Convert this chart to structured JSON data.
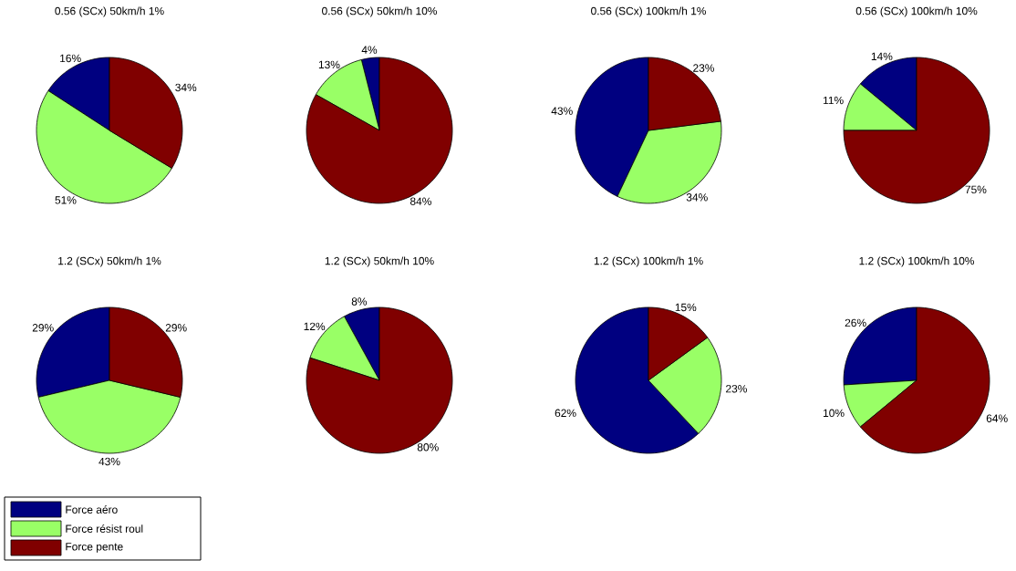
{
  "chart_data": [
    {
      "type": "pie",
      "title": "0.56 (SCx) 50km/h 1%",
      "categories": [
        "Force aéro",
        "Force résist roul",
        "Force pente"
      ],
      "values": [
        16,
        51,
        34
      ],
      "value_labels": [
        "16%",
        "51%",
        "34%"
      ],
      "colors": [
        "#000080",
        "#99ff66",
        "#800000"
      ],
      "legend": "bottom left"
    },
    {
      "type": "pie",
      "title": "0.56 (SCx) 50km/h 10%",
      "categories": [
        null,
        null,
        null
      ],
      "values": [
        4,
        13,
        84
      ],
      "value_labels": [
        "4%",
        "13%",
        "84%"
      ],
      "colors": [
        "#000080",
        "#99ff66",
        "#800000"
      ]
    },
    {
      "type": "pie",
      "title": "0.56 (SCx) 100km/h 1%",
      "categories": [
        null,
        null,
        null
      ],
      "values": [
        43,
        34,
        23
      ],
      "value_labels": [
        "43%",
        "34%",
        "23%"
      ],
      "colors": [
        "#000080",
        "#99ff66",
        "#800000"
      ]
    },
    {
      "type": "pie",
      "title": "0.56 (SCx) 100km/h 10%",
      "categories": [
        null,
        null,
        null
      ],
      "values": [
        14,
        11,
        75
      ],
      "value_labels": [
        "14%",
        "11%",
        "75%"
      ],
      "colors": [
        "#000080",
        "#99ff66",
        "#800000"
      ]
    },
    {
      "type": "pie",
      "title": "1.2 (SCx) 50km/h 1%",
      "categories": [
        null,
        null,
        null
      ],
      "values": [
        29,
        43,
        29
      ],
      "value_labels": [
        "29%",
        "43%",
        "29%"
      ],
      "colors": [
        "#000080",
        "#99ff66",
        "#800000"
      ]
    },
    {
      "type": "pie",
      "title": "1.2 (SCx) 50km/h 10%",
      "categories": [
        null,
        null,
        null
      ],
      "values": [
        8,
        12,
        80
      ],
      "value_labels": [
        "8%",
        "12%",
        "80%"
      ],
      "colors": [
        "#000080",
        "#99ff66",
        "#800000"
      ]
    },
    {
      "type": "pie",
      "title": "1.2 (SCx) 100km/h 1%",
      "categories": [
        null,
        null,
        null
      ],
      "values": [
        62,
        23,
        15
      ],
      "value_labels": [
        "62%",
        "23%",
        "15%"
      ],
      "colors": [
        "#000080",
        "#99ff66",
        "#800000"
      ]
    },
    {
      "type": "pie",
      "title": "1.2 (SCx) 100km/h 10%",
      "categories": [
        null,
        null,
        null
      ],
      "values": [
        26,
        10,
        64
      ],
      "value_labels": [
        "26%",
        "10%",
        "64%"
      ],
      "colors": [
        "#000080",
        "#99ff66",
        "#800000"
      ]
    }
  ]
}
